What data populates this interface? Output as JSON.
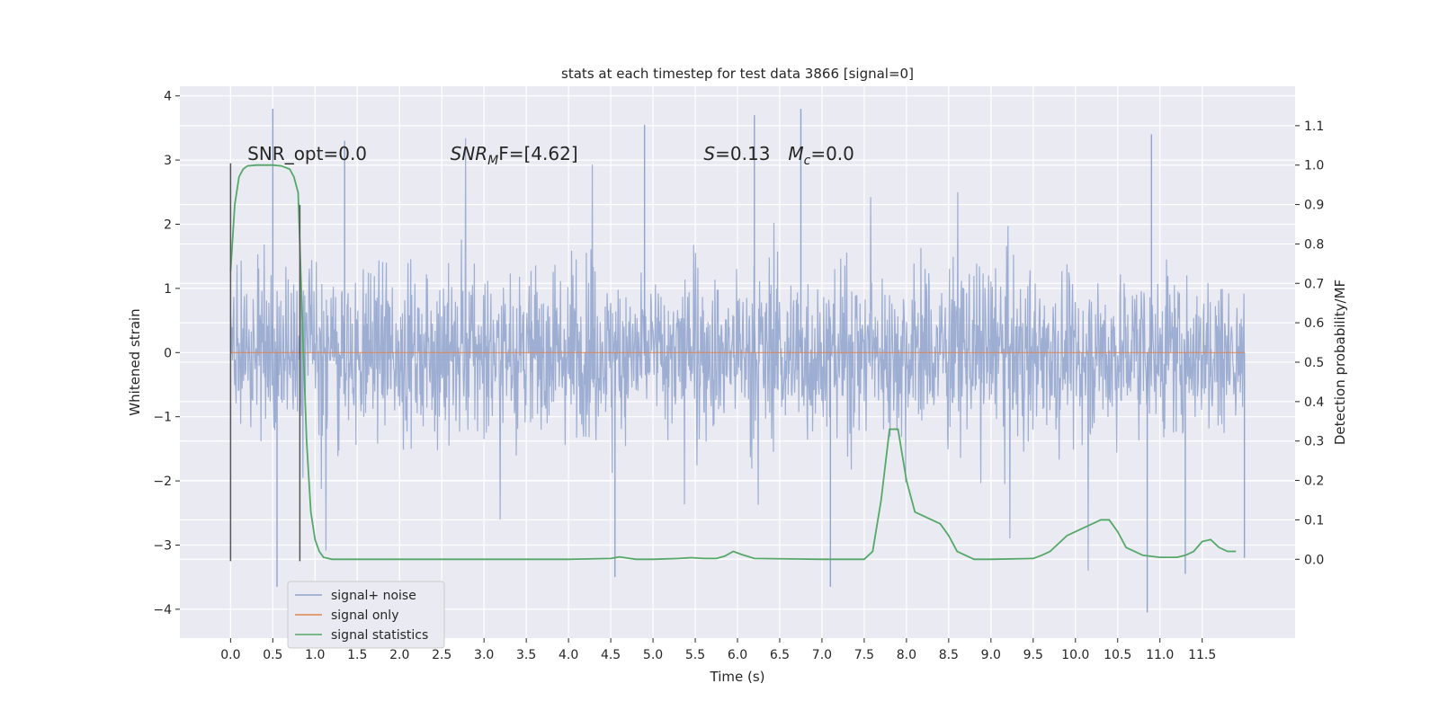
{
  "chart_data": {
    "type": "line",
    "title": "stats at each timestep for test data 3866 [signal=0]",
    "xlabel": "Time (s)",
    "ylabel": "Whitened strain",
    "y2label": "Detection probability/MF",
    "xlim": [
      -0.6,
      12.6
    ],
    "ylim": [
      -4.45,
      4.15
    ],
    "y2lim": [
      -0.2,
      1.2
    ],
    "x_ticks": [
      0.0,
      0.5,
      1.0,
      1.5,
      2.0,
      2.5,
      3.0,
      3.5,
      4.0,
      4.5,
      5.0,
      5.5,
      6.0,
      6.5,
      7.0,
      7.5,
      8.0,
      8.5,
      9.0,
      9.5,
      10.0,
      10.5,
      11.0,
      11.5
    ],
    "x_tick_labels": [
      "0.0",
      "0.5",
      "1.0",
      "1.5",
      "2.0",
      "2.5",
      "3.0",
      "3.5",
      "4.0",
      "4.5",
      "5.0",
      "5.5",
      "6.0",
      "6.5",
      "7.0",
      "7.5",
      "8.0",
      "8.5",
      "9.0",
      "9.5",
      "10.0",
      "10.5",
      "11.0",
      "11.5"
    ],
    "y_ticks": [
      -4,
      -3,
      -2,
      -1,
      0,
      1,
      2,
      3,
      4
    ],
    "y_tick_labels": [
      "−4",
      "−3",
      "−2",
      "−1",
      "0",
      "1",
      "2",
      "3",
      "4"
    ],
    "y2_ticks": [
      0.0,
      0.1,
      0.2,
      0.3,
      0.4,
      0.5,
      0.6,
      0.7,
      0.8,
      0.9,
      1.0,
      1.1
    ],
    "y2_tick_labels": [
      "0.0",
      "0.1",
      "0.2",
      "0.3",
      "0.4",
      "0.5",
      "0.6",
      "0.7",
      "0.8",
      "0.9",
      "1.0",
      "1.1"
    ],
    "grid": true,
    "legend_position": "lower-left",
    "series": [
      {
        "name": "signal+ noise",
        "axis": "left",
        "color": "#8fa3cc",
        "x_range": [
          0.0,
          12.0
        ],
        "envelope_peaks": [
          {
            "x": 0.5,
            "y": 3.8
          },
          {
            "x": 0.55,
            "y": -3.65
          },
          {
            "x": 1.35,
            "y": 3.3
          },
          {
            "x": 4.55,
            "y": -3.5
          },
          {
            "x": 4.9,
            "y": 3.55
          },
          {
            "x": 6.2,
            "y": 3.7
          },
          {
            "x": 6.75,
            "y": 3.8
          },
          {
            "x": 7.1,
            "y": -3.65
          },
          {
            "x": 10.9,
            "y": 3.4
          },
          {
            "x": 10.85,
            "y": -4.05
          },
          {
            "x": 11.3,
            "y": -3.45
          },
          {
            "x": 12.0,
            "y": -3.2
          }
        ]
      },
      {
        "name": "signal only",
        "axis": "left",
        "color": "#dd8452",
        "x": [
          0.0,
          12.0
        ],
        "y": [
          0.0,
          0.0
        ]
      },
      {
        "name": "signal statistics",
        "axis": "right",
        "color": "#55a868",
        "x": [
          0.0,
          0.05,
          0.1,
          0.15,
          0.2,
          0.3,
          0.4,
          0.5,
          0.6,
          0.7,
          0.75,
          0.8,
          0.85,
          0.9,
          0.95,
          1.0,
          1.05,
          1.1,
          1.2,
          1.5,
          2.0,
          3.0,
          4.0,
          4.5,
          4.6,
          4.7,
          4.8,
          5.0,
          5.3,
          5.45,
          5.6,
          5.75,
          5.85,
          5.95,
          6.05,
          6.2,
          7.0,
          7.5,
          7.6,
          7.7,
          7.8,
          7.9,
          8.0,
          8.1,
          8.2,
          8.3,
          8.4,
          8.5,
          8.6,
          8.8,
          9.0,
          9.5,
          9.6,
          9.7,
          9.8,
          9.9,
          10.0,
          10.1,
          10.2,
          10.3,
          10.4,
          10.5,
          10.6,
          10.8,
          11.0,
          11.2,
          11.3,
          11.4,
          11.5,
          11.6,
          11.7,
          11.8,
          11.9
        ],
        "y": [
          0.73,
          0.9,
          0.97,
          0.99,
          0.998,
          1.0,
          1.0,
          1.0,
          0.998,
          0.99,
          0.97,
          0.93,
          0.6,
          0.3,
          0.12,
          0.05,
          0.02,
          0.005,
          0.0,
          0.0,
          0.0,
          0.0,
          0.0,
          0.002,
          0.006,
          0.003,
          0.0,
          0.0,
          0.002,
          0.004,
          0.002,
          0.002,
          0.008,
          0.02,
          0.012,
          0.002,
          0.0,
          0.0,
          0.02,
          0.15,
          0.33,
          0.33,
          0.2,
          0.12,
          0.11,
          0.1,
          0.09,
          0.06,
          0.02,
          0.0,
          0.0,
          0.002,
          0.01,
          0.02,
          0.04,
          0.06,
          0.07,
          0.08,
          0.09,
          0.1,
          0.1,
          0.07,
          0.03,
          0.01,
          0.005,
          0.005,
          0.01,
          0.02,
          0.045,
          0.05,
          0.03,
          0.02,
          0.02
        ]
      }
    ],
    "vertical_lines": [
      {
        "x": 0.0,
        "y_range": [
          -3.25,
          2.95
        ],
        "color": "#555555"
      },
      {
        "x": 0.82,
        "y_range": [
          -3.25,
          2.3
        ],
        "color": "#555555"
      }
    ],
    "annotations": [
      {
        "x": 0.2,
        "y": 3.0,
        "text": "SNR_opt=0.0",
        "style": "plain"
      },
      {
        "x": 2.6,
        "y": 3.0,
        "prefix": "SNR",
        "sub": "M",
        "suffix": "F=[4.62]",
        "style": "math"
      },
      {
        "x": 5.6,
        "y": 3.0,
        "prefix": "S",
        "suffix": "=0.13",
        "style": "math"
      },
      {
        "x": 6.6,
        "y": 3.0,
        "prefix": "M",
        "sub": "c",
        "suffix": "=0.0",
        "style": "math"
      }
    ]
  }
}
